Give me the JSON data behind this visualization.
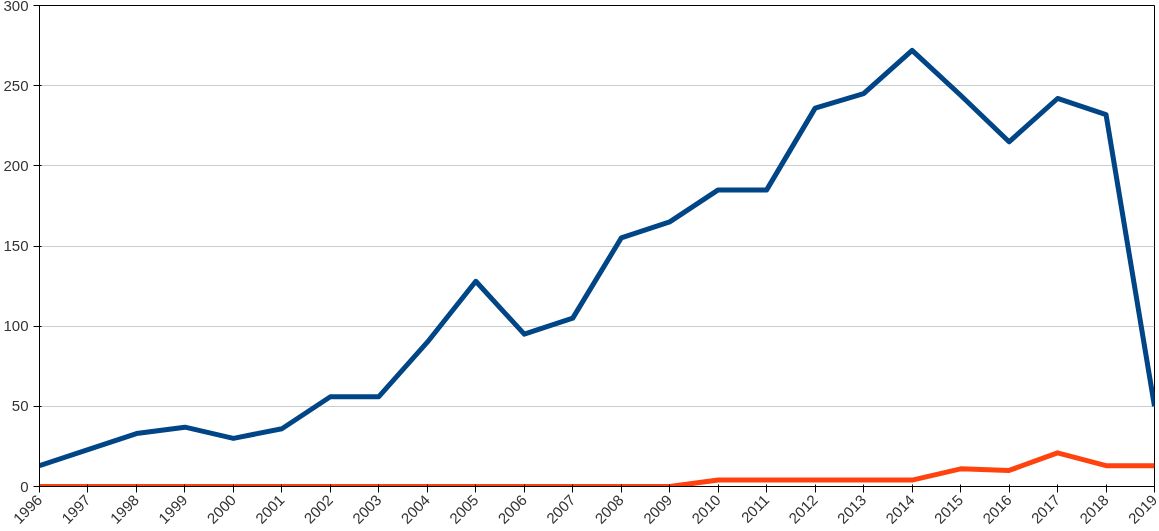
{
  "chart_data": {
    "type": "line",
    "categories": [
      "1996",
      "1997",
      "1998",
      "1999",
      "2000",
      "2001",
      "2002",
      "2003",
      "2004",
      "2005",
      "2006",
      "2007",
      "2008",
      "2009",
      "2010",
      "2011",
      "2012",
      "2013",
      "2014",
      "2015",
      "2016",
      "2017",
      "2018",
      "2019"
    ],
    "series": [
      {
        "color": "#004586",
        "values": [
          13,
          23,
          33,
          37,
          30,
          36,
          56,
          56,
          90,
          128,
          95,
          105,
          155,
          165,
          185,
          185,
          236,
          245,
          272,
          244,
          215,
          242,
          232,
          50
        ]
      },
      {
        "color": "#ff420e",
        "values": [
          0,
          0,
          0,
          0,
          0,
          0,
          0,
          0,
          0,
          0,
          0,
          0,
          0,
          0,
          4,
          4,
          4,
          4,
          4,
          11,
          10,
          21,
          13,
          13
        ]
      }
    ],
    "ylim": [
      0,
      300
    ],
    "yticks": [
      0,
      50,
      100,
      150,
      200,
      250,
      300
    ],
    "grid": "y",
    "marker": "none",
    "line_style": "solid"
  }
}
